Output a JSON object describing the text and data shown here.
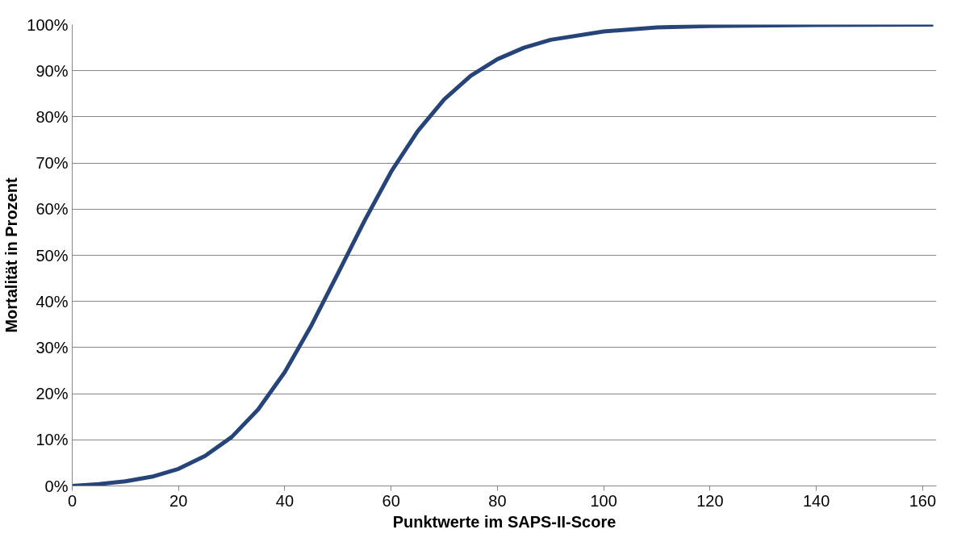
{
  "chart_data": {
    "type": "line",
    "xlabel": "Punktwerte im SAPS-II-Score",
    "ylabel": "Mortalität in Prozent",
    "x": [
      0,
      5,
      10,
      15,
      20,
      25,
      30,
      35,
      40,
      45,
      50,
      55,
      60,
      65,
      70,
      75,
      80,
      85,
      90,
      100,
      110,
      120,
      140,
      162
    ],
    "series": [
      {
        "color": "#264478",
        "values": [
          0.0,
          0.4,
          1.0,
          2.0,
          3.7,
          6.5,
          10.6,
          16.6,
          24.7,
          34.8,
          46.1,
          57.5,
          68.1,
          76.9,
          83.8,
          88.9,
          92.5,
          95.0,
          96.7,
          98.5,
          99.4,
          99.7,
          99.9,
          100.0
        ]
      }
    ],
    "xlim": [
      0,
      162.6
    ],
    "xticks": [
      0,
      20,
      40,
      60,
      80,
      100,
      120,
      140,
      160
    ],
    "ylim": [
      0,
      100
    ],
    "yticks": [
      {
        "value": 0,
        "label": "0%"
      },
      {
        "value": 10,
        "label": "10%"
      },
      {
        "value": 20,
        "label": "20%"
      },
      {
        "value": 30,
        "label": "30%"
      },
      {
        "value": 40,
        "label": "40%"
      },
      {
        "value": 50,
        "label": "50%"
      },
      {
        "value": 60,
        "label": "60%"
      },
      {
        "value": 70,
        "label": "70%"
      },
      {
        "value": 80,
        "label": "80%"
      },
      {
        "value": 90,
        "label": "90%"
      },
      {
        "value": 100,
        "label": "100%"
      }
    ],
    "grid": "y",
    "marker": "none",
    "line_style": "solid"
  }
}
